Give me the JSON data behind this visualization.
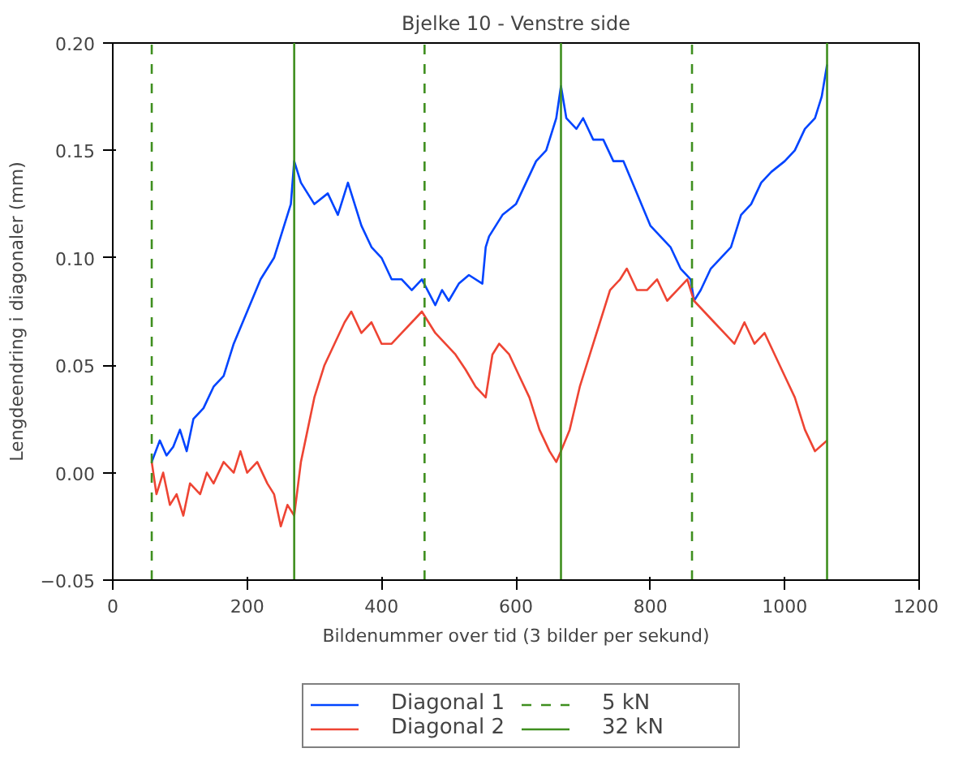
{
  "chart_data": {
    "type": "line",
    "title": "Bjelke 10 - Venstre side",
    "xlabel": "Bildenummer over tid (3 bilder per sekund)",
    "ylabel": "Lengdeendring i diagonaler (mm)",
    "xlim": [
      0,
      1200
    ],
    "xticks": [
      0,
      200,
      400,
      600,
      800,
      1000,
      1200
    ],
    "ylim": [
      -0.05,
      0.2
    ],
    "yticks": [
      {
        "value": -0.05,
        "label": "−0.05"
      },
      {
        "value": 0.0,
        "label": "0.00"
      },
      {
        "value": 0.05,
        "label": "0.05"
      },
      {
        "value": 0.1,
        "label": "0.10"
      },
      {
        "value": 0.15,
        "label": "0.15"
      },
      {
        "value": 0.2,
        "label": "0.20"
      }
    ],
    "grid": false,
    "legend": "bottom",
    "line_style": "solid",
    "series": [
      {
        "name": "Diagonal 1",
        "color": "#0044ff",
        "x": [
          58,
          70,
          80,
          90,
          100,
          110,
          120,
          135,
          150,
          165,
          180,
          200,
          220,
          240,
          255,
          265,
          270,
          280,
          290,
          300,
          320,
          335,
          350,
          360,
          370,
          385,
          400,
          415,
          430,
          445,
          460,
          480,
          490,
          500,
          515,
          530,
          550,
          555,
          560,
          580,
          600,
          615,
          630,
          645,
          660,
          667,
          675,
          690,
          700,
          715,
          730,
          745,
          760,
          780,
          800,
          815,
          830,
          845,
          860,
          865,
          875,
          890,
          905,
          920,
          935,
          950,
          965,
          980,
          1000,
          1015,
          1030,
          1045,
          1055,
          1063
        ],
        "values": [
          0.005,
          0.015,
          0.008,
          0.012,
          0.02,
          0.01,
          0.025,
          0.03,
          0.04,
          0.045,
          0.06,
          0.075,
          0.09,
          0.1,
          0.115,
          0.125,
          0.145,
          0.135,
          0.13,
          0.125,
          0.13,
          0.12,
          0.135,
          0.125,
          0.115,
          0.105,
          0.1,
          0.09,
          0.09,
          0.085,
          0.09,
          0.078,
          0.085,
          0.08,
          0.088,
          0.092,
          0.088,
          0.105,
          0.11,
          0.12,
          0.125,
          0.135,
          0.145,
          0.15,
          0.165,
          0.18,
          0.165,
          0.16,
          0.165,
          0.155,
          0.155,
          0.145,
          0.145,
          0.13,
          0.115,
          0.11,
          0.105,
          0.095,
          0.09,
          0.08,
          0.085,
          0.095,
          0.1,
          0.105,
          0.12,
          0.125,
          0.135,
          0.14,
          0.145,
          0.15,
          0.16,
          0.165,
          0.175,
          0.19
        ]
      },
      {
        "name": "Diagonal 2",
        "color": "#ee4433",
        "x": [
          58,
          65,
          75,
          85,
          95,
          105,
          115,
          130,
          140,
          150,
          165,
          180,
          190,
          200,
          215,
          230,
          240,
          250,
          260,
          270,
          280,
          290,
          300,
          315,
          330,
          345,
          355,
          370,
          385,
          400,
          415,
          430,
          445,
          460,
          470,
          480,
          495,
          510,
          525,
          540,
          555,
          565,
          575,
          590,
          605,
          620,
          635,
          650,
          660,
          667,
          680,
          695,
          710,
          725,
          740,
          755,
          765,
          780,
          795,
          810,
          825,
          840,
          855,
          865,
          880,
          895,
          910,
          925,
          940,
          955,
          970,
          985,
          1000,
          1015,
          1030,
          1045,
          1063
        ],
        "values": [
          0.005,
          -0.01,
          0.0,
          -0.015,
          -0.01,
          -0.02,
          -0.005,
          -0.01,
          0.0,
          -0.005,
          0.005,
          0.0,
          0.01,
          0.0,
          0.005,
          -0.005,
          -0.01,
          -0.025,
          -0.015,
          -0.02,
          0.005,
          0.02,
          0.035,
          0.05,
          0.06,
          0.07,
          0.075,
          0.065,
          0.07,
          0.06,
          0.06,
          0.065,
          0.07,
          0.075,
          0.07,
          0.065,
          0.06,
          0.055,
          0.048,
          0.04,
          0.035,
          0.055,
          0.06,
          0.055,
          0.045,
          0.035,
          0.02,
          0.01,
          0.005,
          0.01,
          0.02,
          0.04,
          0.055,
          0.07,
          0.085,
          0.09,
          0.095,
          0.085,
          0.085,
          0.09,
          0.08,
          0.085,
          0.09,
          0.08,
          0.075,
          0.07,
          0.065,
          0.06,
          0.07,
          0.06,
          0.065,
          0.055,
          0.045,
          0.035,
          0.02,
          0.01,
          0.015
        ]
      }
    ],
    "ref_lines": [
      {
        "axis": "x",
        "value": 58,
        "label": "5 kN",
        "color": "#3f8f1f",
        "line_style": "dashed"
      },
      {
        "axis": "x",
        "value": 270,
        "label": "32 kN",
        "color": "#3f8f1f",
        "line_style": "solid"
      },
      {
        "axis": "x",
        "value": 464,
        "color": "#3f8f1f",
        "line_style": "dashed"
      },
      {
        "axis": "x",
        "value": 667,
        "color": "#3f8f1f",
        "line_style": "solid"
      },
      {
        "axis": "x",
        "value": 862,
        "color": "#3f8f1f",
        "line_style": "dashed"
      },
      {
        "axis": "x",
        "value": 1063,
        "color": "#3f8f1f",
        "line_style": "solid"
      }
    ]
  }
}
